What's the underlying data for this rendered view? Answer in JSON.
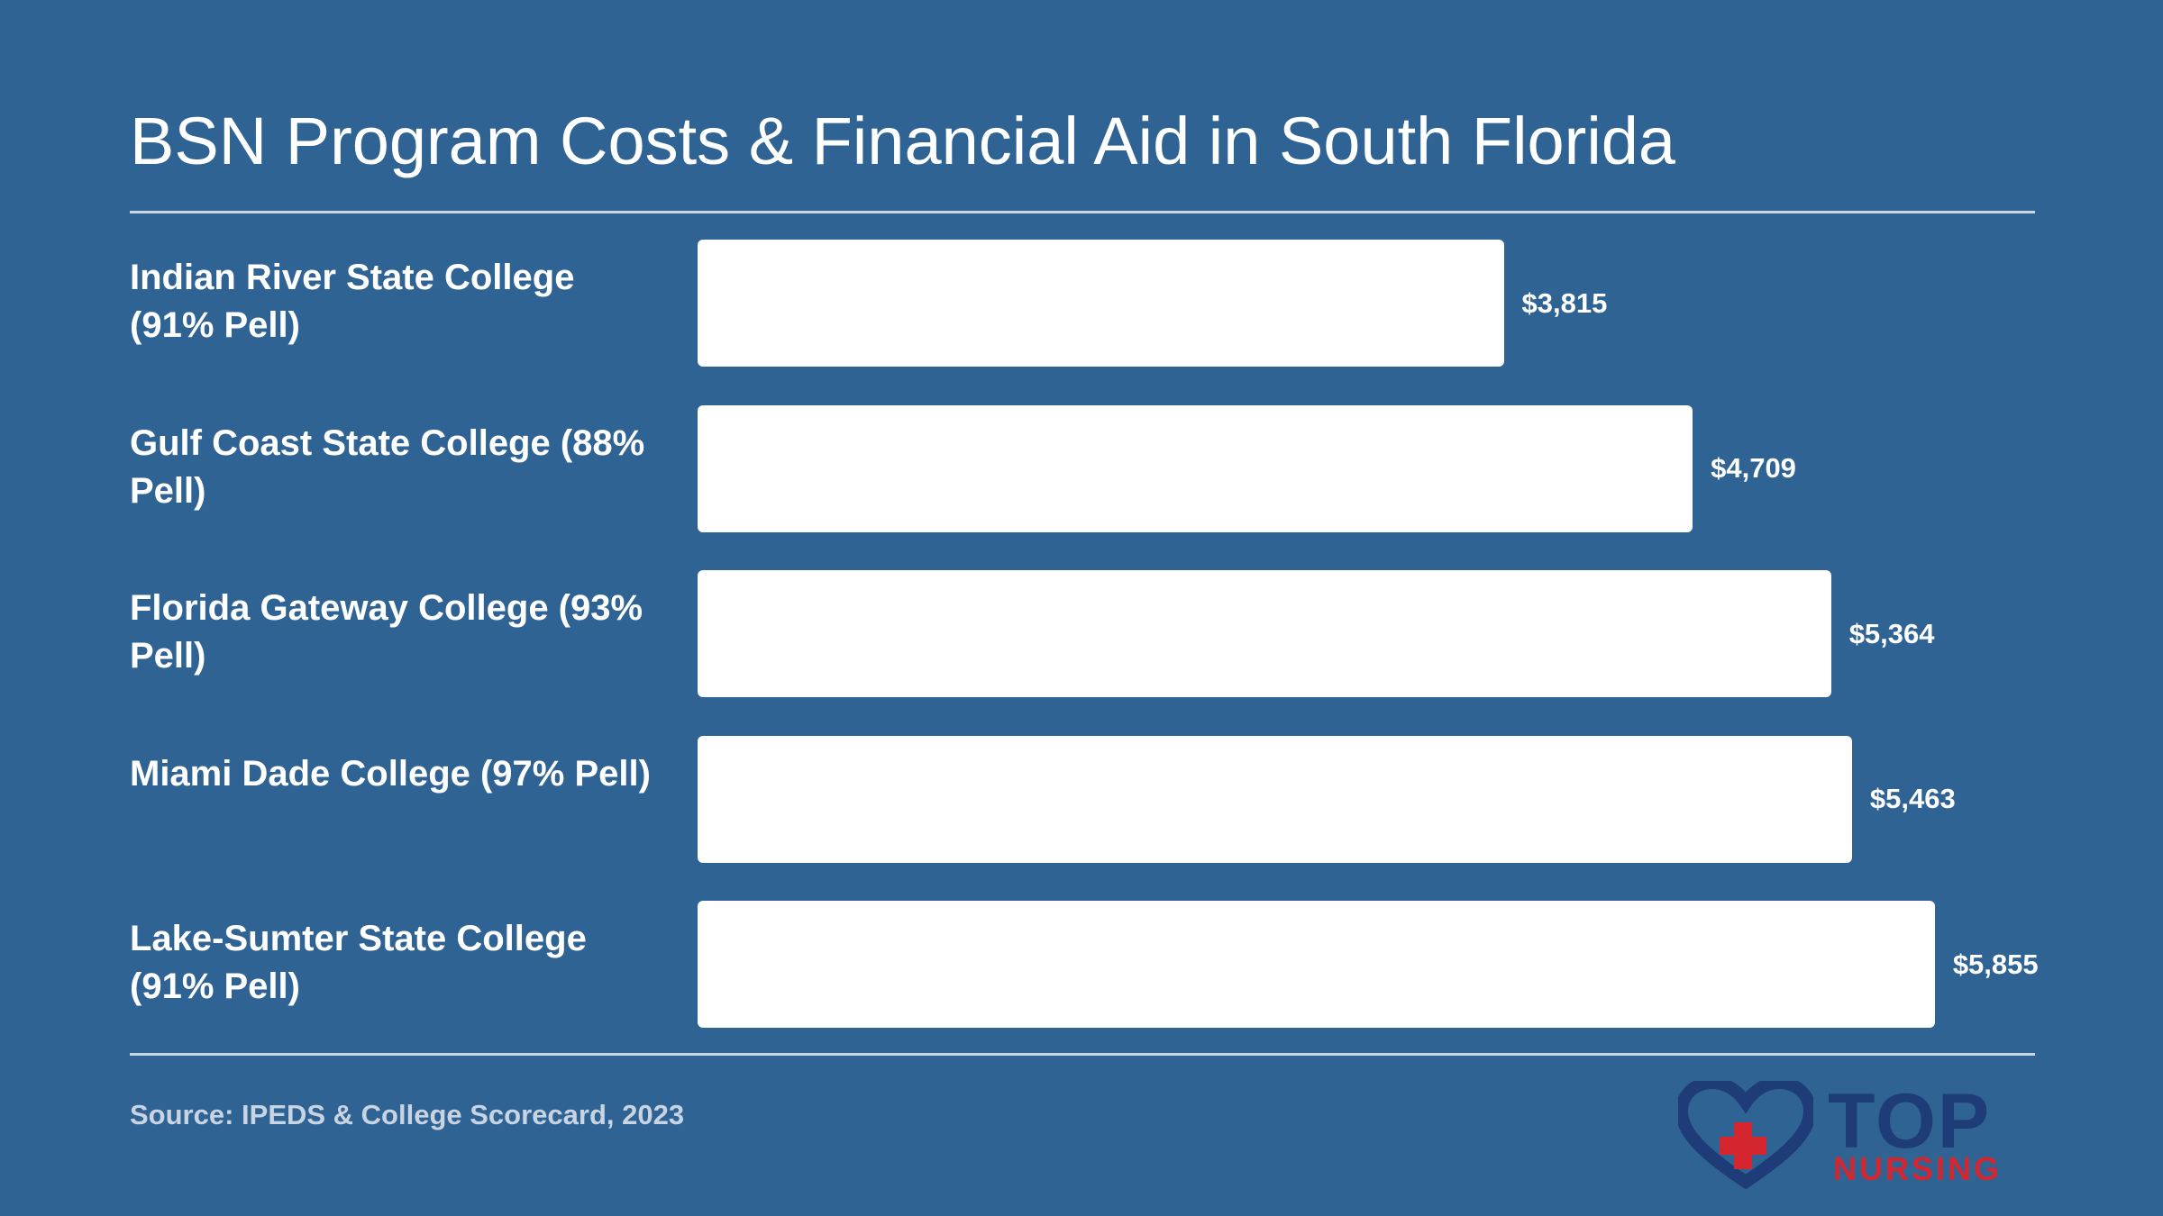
{
  "title": "BSN Program Costs & Financial Aid in South Florida",
  "source": "Source: IPEDS & College Scorecard, 2023",
  "logo": {
    "top_text": "TOP",
    "bottom_text": "NURSING",
    "heart_color": "#1e3c78",
    "cross_color": "#d4262f"
  },
  "colors": {
    "background": "#2f6394",
    "bar": "#ffffff",
    "text": "#ffffff"
  },
  "chart_data": {
    "type": "bar",
    "orientation": "horizontal",
    "categories": [
      "Indian River State College (91% Pell)",
      "Gulf Coast State College (88% Pell)",
      "Florida Gateway College (93% Pell)",
      "Miami Dade College (97% Pell)",
      "Lake-Sumter State College (91% Pell)"
    ],
    "values": [
      3815,
      4709,
      5364,
      5463,
      5855
    ],
    "value_labels": [
      "$3,815",
      "$4,709",
      "$5,364",
      "$5,463",
      "$5,855"
    ],
    "title": "BSN Program Costs & Financial Aid in South Florida",
    "xlabel": "",
    "ylabel": "",
    "xlim": [
      0,
      6568
    ],
    "grid": false,
    "legend": "none"
  }
}
